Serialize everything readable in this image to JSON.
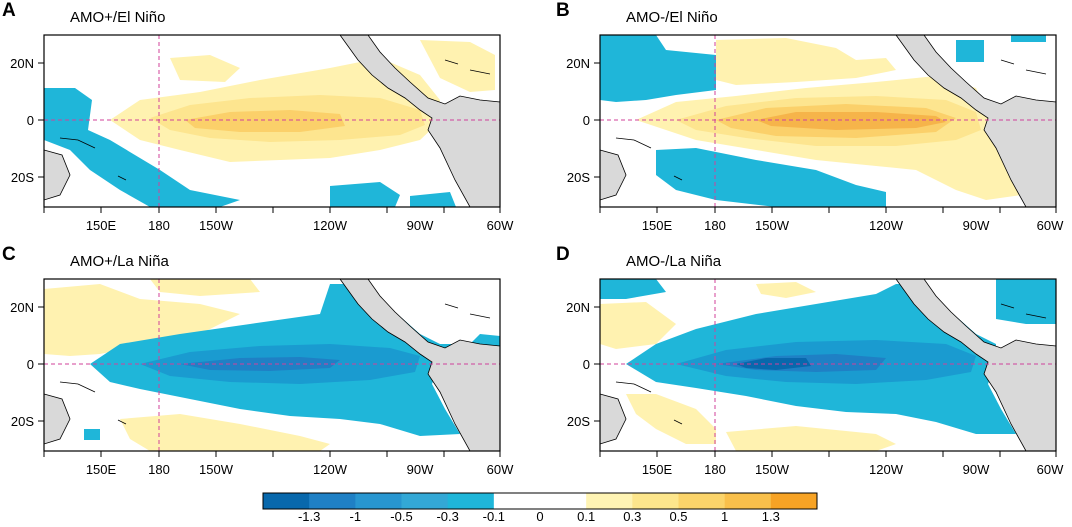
{
  "panels": [
    {
      "letter": "A",
      "title": "AMO+/El Niño"
    },
    {
      "letter": "B",
      "title": "AMO-/El Niño"
    },
    {
      "letter": "C",
      "title": "AMO+/La Niña"
    },
    {
      "letter": "D",
      "title": "AMO-/La Niña"
    }
  ],
  "axes": {
    "x_ticks": [
      "150E",
      "180",
      "150W",
      "120W",
      "90W",
      "60W"
    ],
    "y_ticks": [
      "20N",
      "0",
      "20S"
    ]
  },
  "colorbar": {
    "labels": [
      "-1.3",
      "-1",
      "-0.5",
      "-0.3",
      "-0.1",
      "0",
      "0.1",
      "0.3",
      "0.5",
      "1",
      "1.3"
    ],
    "colors": [
      "#0868ac",
      "#1f80c5",
      "#2896d0",
      "#33a8d6",
      "#1fb6d9",
      "#ffffff",
      "#ffffff",
      "#fff4b4",
      "#fde68c",
      "#fbd46a",
      "#f9c04b",
      "#f7a325"
    ]
  },
  "colors": {
    "land": "#d9d9d9",
    "warm_weak": "#fff2b0",
    "warm_mid": "#fde58f",
    "warm_strong": "#fbd06a",
    "warm_peak": "#f6b44a",
    "cool_weak": "#1fb6d9",
    "cool_mid": "#1a9bd0",
    "cool_strong": "#1f80c5",
    "cool_peak": "#0868ac",
    "ref_line": "#d0419a"
  }
}
